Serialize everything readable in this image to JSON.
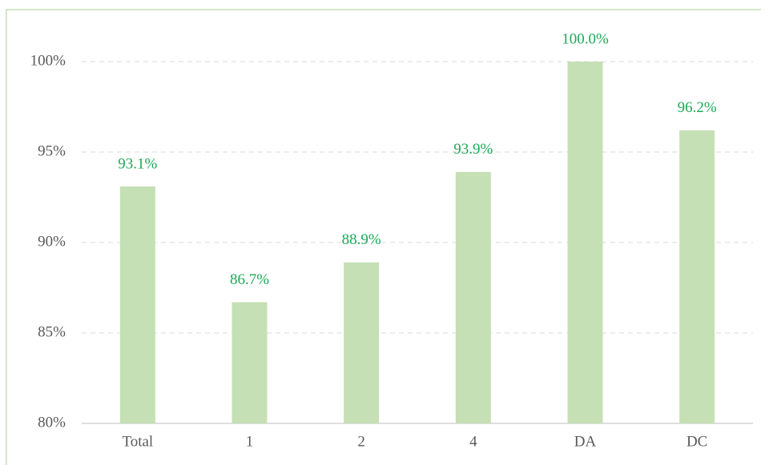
{
  "chart_data": {
    "type": "bar",
    "categories": [
      "Total",
      "1",
      "2",
      "4",
      "DA",
      "DC"
    ],
    "values": [
      93.1,
      86.7,
      88.9,
      93.9,
      100.0,
      96.2
    ],
    "value_labels": [
      "93.1%",
      "86.7%",
      "88.9%",
      "93.9%",
      "100.0%",
      "96.2%"
    ],
    "color": "#c5e0b4",
    "label_color": "#1aaa55",
    "ylim": [
      80,
      100
    ],
    "yticks": [
      {
        "value": 80,
        "label": "80%"
      },
      {
        "value": 85,
        "label": "85%"
      },
      {
        "value": 90,
        "label": "90%"
      },
      {
        "value": 95,
        "label": "95%"
      },
      {
        "value": 100,
        "label": "100%"
      }
    ],
    "grid": true
  }
}
